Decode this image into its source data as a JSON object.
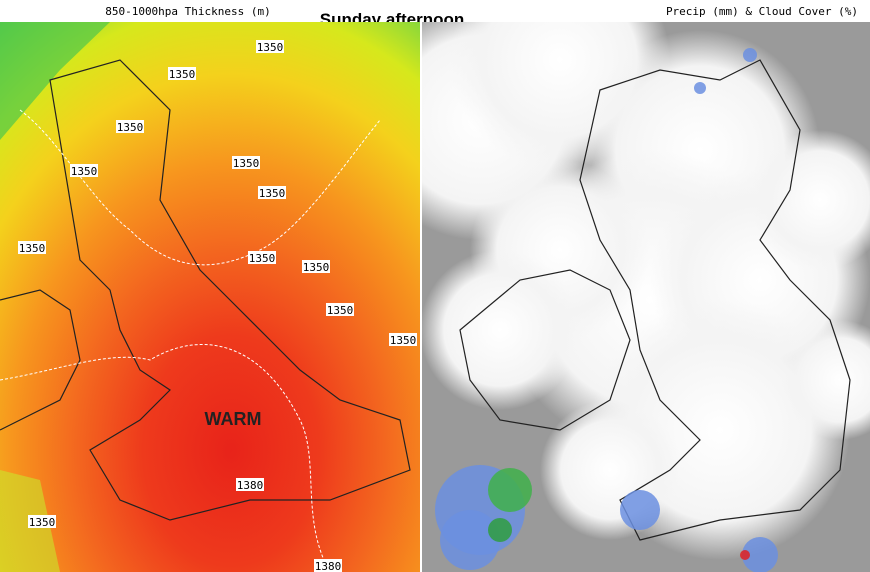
{
  "header": {
    "title": "Sunday afternoon",
    "left_title": "850-1000hpa Thickness (m)",
    "right_title": "Precip (mm) & Cloud Cover (%)"
  },
  "left_map": {
    "annotation": "WARM",
    "contour_labels": [
      "1350",
      "1350",
      "1350",
      "1350",
      "1350",
      "1350",
      "1350",
      "1350",
      "1350",
      "1350",
      "1350",
      "1350",
      "1380",
      "1380"
    ]
  }
}
